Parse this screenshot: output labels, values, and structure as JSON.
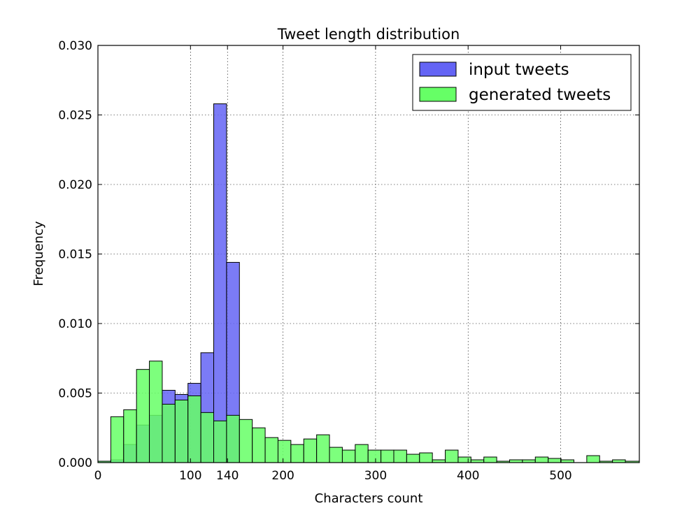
{
  "chart_data": {
    "type": "bar",
    "title": "Tweet length distribution",
    "xlabel": "Characters count",
    "ylabel": "Frequency",
    "xlim": [
      0,
      585
    ],
    "ylim": [
      0,
      0.03
    ],
    "xticks": [
      0,
      100,
      140,
      200,
      300,
      400,
      500
    ],
    "yticks": [
      "0.000",
      "0.005",
      "0.010",
      "0.015",
      "0.020",
      "0.025",
      "0.030"
    ],
    "grid": true,
    "legend_position": "top-right",
    "bin_width": 13.9,
    "series": [
      {
        "name": "input tweets",
        "color": "#6464f5",
        "bins": [
          [
            0,
            13.9,
            0.0001
          ],
          [
            13.9,
            27.8,
            0.0002
          ],
          [
            27.8,
            41.7,
            0.0013
          ],
          [
            41.7,
            55.6,
            0.0027
          ],
          [
            55.6,
            69.5,
            0.0034
          ],
          [
            69.5,
            83.4,
            0.0052
          ],
          [
            83.4,
            97.3,
            0.0049
          ],
          [
            97.3,
            111.2,
            0.0057
          ],
          [
            111.2,
            125.1,
            0.0079
          ],
          [
            125.1,
            139.0,
            0.0258
          ],
          [
            139.0,
            152.9,
            0.0144
          ]
        ]
      },
      {
        "name": "generated tweets",
        "color": "#66ff66",
        "bins": [
          [
            0,
            13.9,
            0.0001
          ],
          [
            13.9,
            27.8,
            0.0033
          ],
          [
            27.8,
            41.7,
            0.0038
          ],
          [
            41.7,
            55.6,
            0.0067
          ],
          [
            55.6,
            69.5,
            0.0073
          ],
          [
            69.5,
            83.4,
            0.0042
          ],
          [
            83.4,
            97.3,
            0.0045
          ],
          [
            97.3,
            111.2,
            0.0048
          ],
          [
            111.2,
            125.1,
            0.0036
          ],
          [
            125.1,
            139.0,
            0.003
          ],
          [
            139.0,
            152.9,
            0.0034
          ],
          [
            152.9,
            166.8,
            0.0031
          ],
          [
            166.8,
            180.7,
            0.0025
          ],
          [
            180.7,
            194.6,
            0.0018
          ],
          [
            194.6,
            208.5,
            0.0016
          ],
          [
            208.5,
            222.4,
            0.0013
          ],
          [
            222.4,
            236.3,
            0.0017
          ],
          [
            236.3,
            250.2,
            0.002
          ],
          [
            250.2,
            264.1,
            0.0011
          ],
          [
            264.1,
            278.0,
            0.0009
          ],
          [
            278.0,
            291.9,
            0.0013
          ],
          [
            291.9,
            305.8,
            0.0009
          ],
          [
            305.8,
            319.7,
            0.0009
          ],
          [
            319.7,
            333.6,
            0.0009
          ],
          [
            333.6,
            347.5,
            0.0006
          ],
          [
            347.5,
            361.4,
            0.0007
          ],
          [
            361.4,
            375.3,
            0.0002
          ],
          [
            375.3,
            389.2,
            0.0009
          ],
          [
            389.2,
            403.1,
            0.0004
          ],
          [
            403.1,
            417.0,
            0.0002
          ],
          [
            417.0,
            430.9,
            0.0004
          ],
          [
            430.9,
            444.8,
            0.0001
          ],
          [
            444.8,
            458.7,
            0.0002
          ],
          [
            458.7,
            472.6,
            0.0002
          ],
          [
            472.6,
            486.5,
            0.0004
          ],
          [
            486.5,
            500.4,
            0.0003
          ],
          [
            500.4,
            514.3,
            0.0002
          ],
          [
            514.3,
            528.2,
            0.0
          ],
          [
            528.2,
            542.1,
            0.0005
          ],
          [
            542.1,
            556.0,
            0.0001
          ],
          [
            556.0,
            569.9,
            0.0002
          ],
          [
            569.9,
            585.0,
            0.0001
          ]
        ]
      }
    ],
    "overlap_color": "#3cb87a"
  }
}
